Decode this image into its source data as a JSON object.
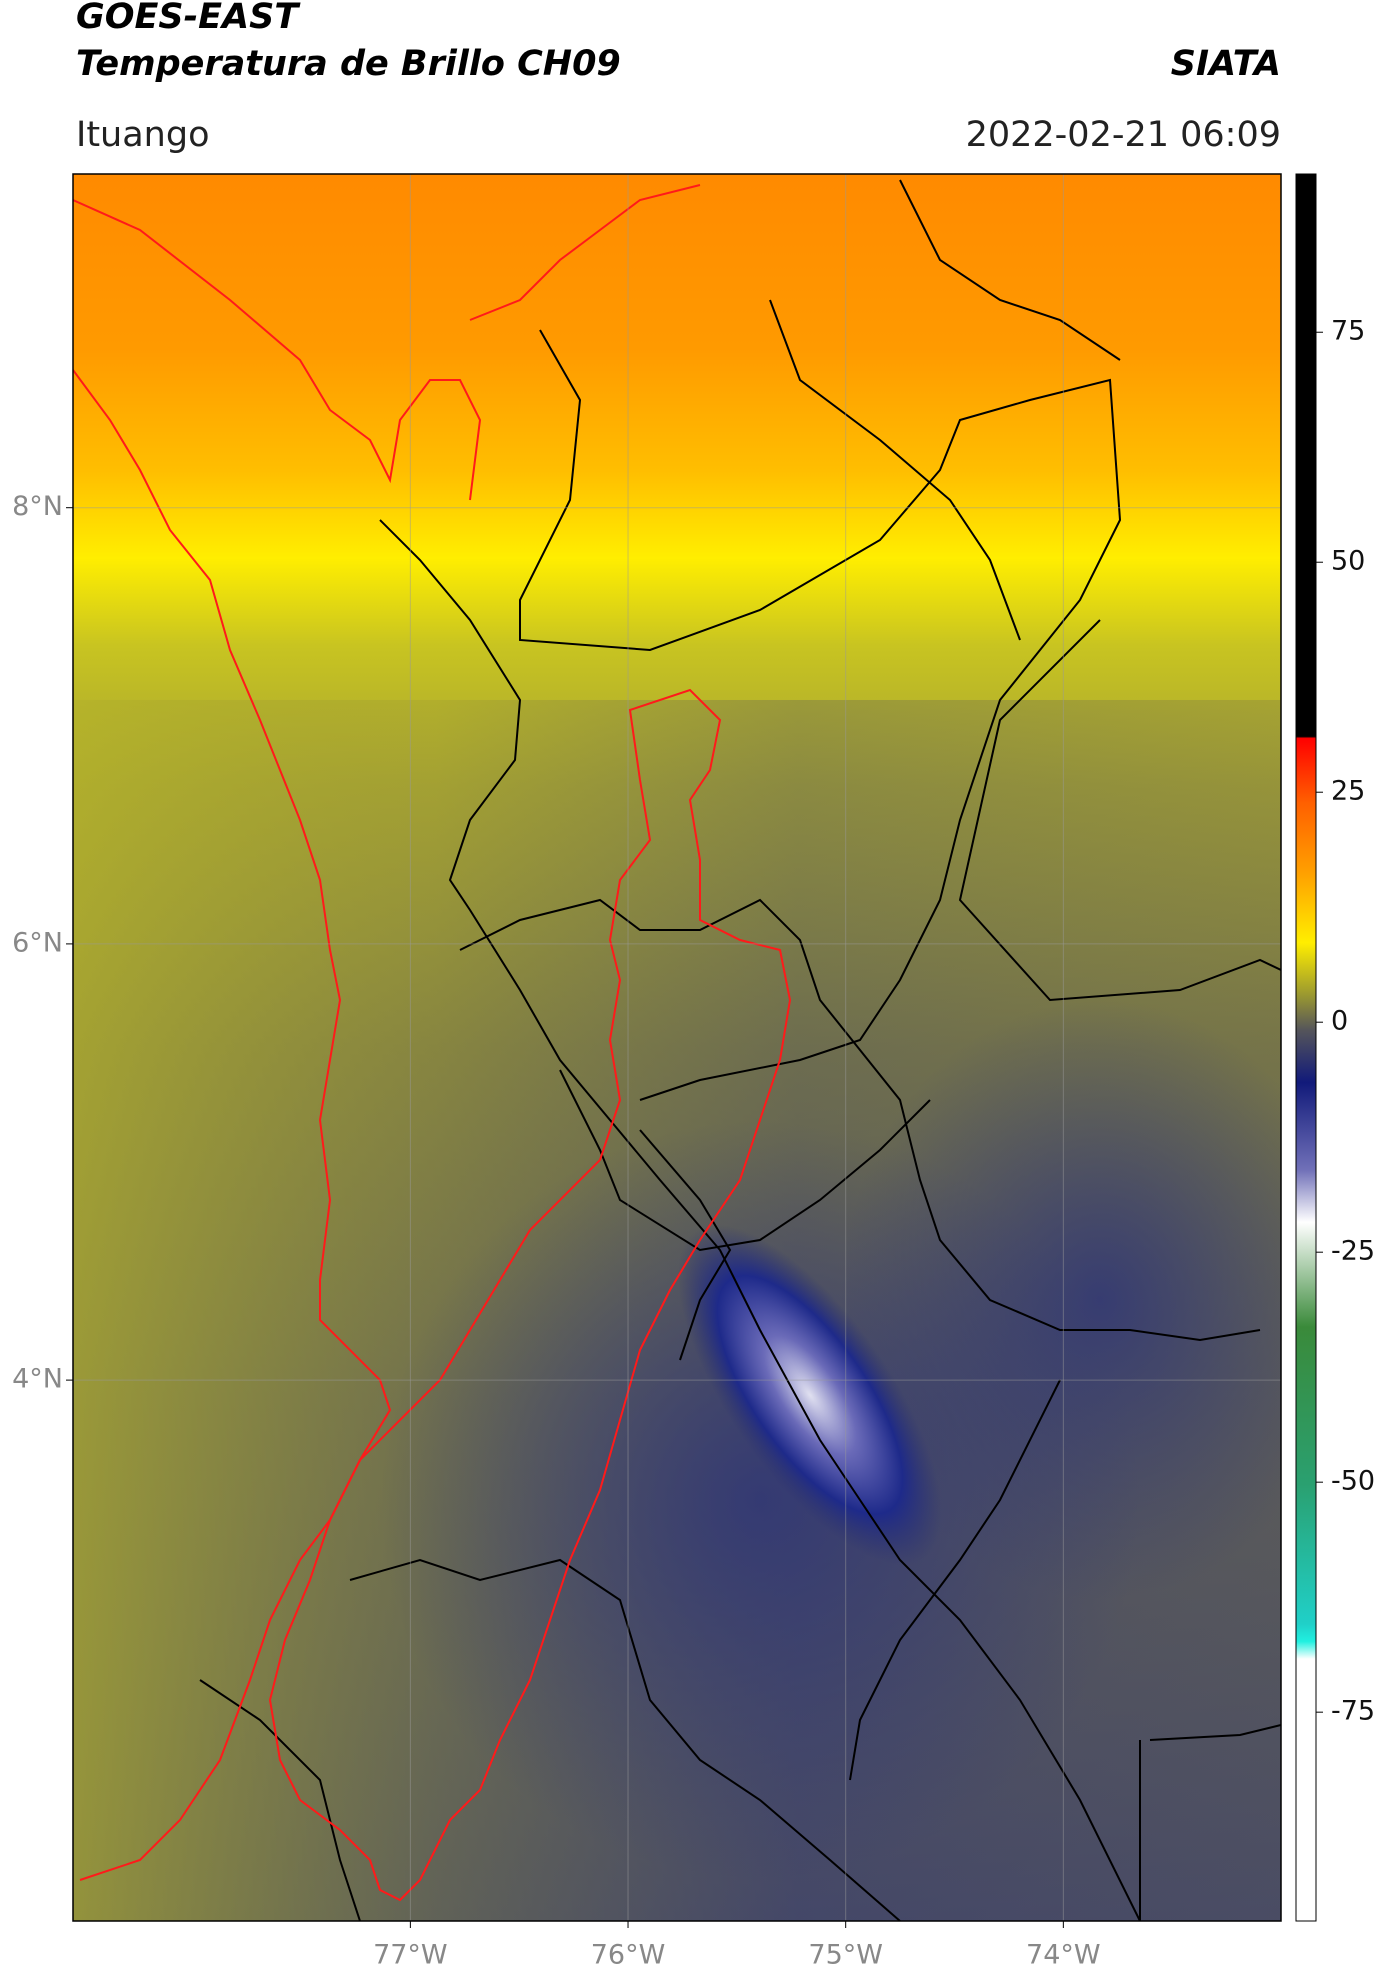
{
  "chart_data": {
    "type": "map",
    "title": "GOES-EAST",
    "subtitle": "Temperatura de Brillo CH09",
    "source": "SIATA",
    "region": "Ituango",
    "datetime": "2022-02-21 06:09",
    "xlim": [
      -78.55,
      -73.0
    ],
    "ylim": [
      1.52,
      9.53
    ],
    "xticks": [
      {
        "value": -77,
        "label": "77°W"
      },
      {
        "value": -76,
        "label": "76°W"
      },
      {
        "value": -75,
        "label": "75°W"
      },
      {
        "value": -74,
        "label": "74°W"
      }
    ],
    "yticks": [
      {
        "value": 8,
        "label": "8°N"
      },
      {
        "value": 6,
        "label": "6°N"
      },
      {
        "value": 4,
        "label": "4°N"
      }
    ],
    "grid": true,
    "colorbar": {
      "lim": [
        -97.7,
        92.2
      ],
      "ticks": [
        75,
        50,
        25,
        0,
        -25,
        -50,
        -75
      ]
    }
  }
}
